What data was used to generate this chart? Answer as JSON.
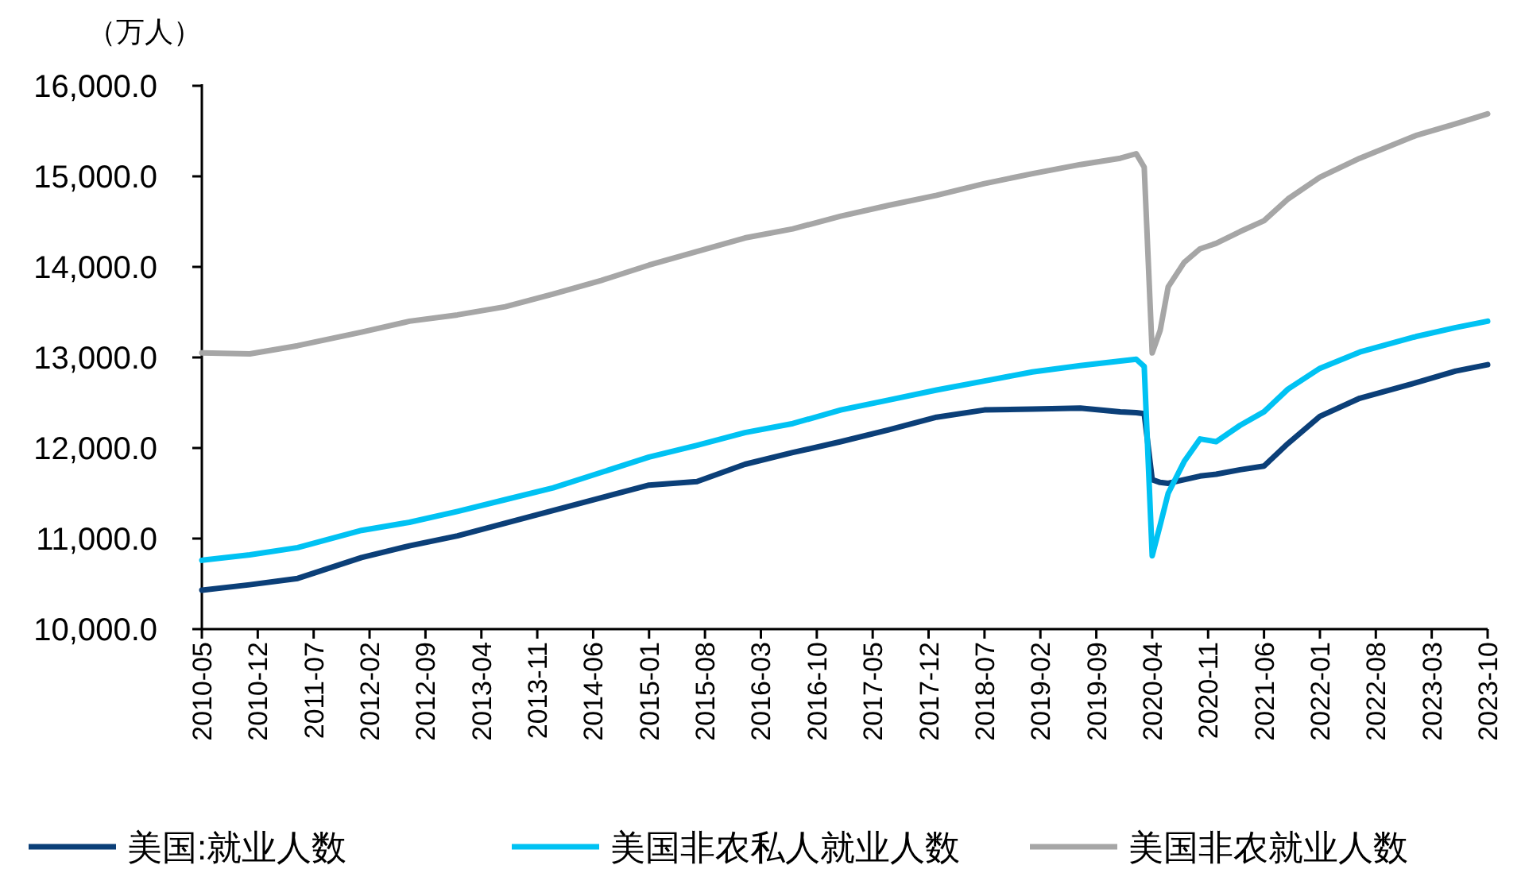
{
  "chart_data": {
    "type": "line",
    "ylabel": "（万人）",
    "x": [
      "2010-05",
      "2010-11",
      "2011-05",
      "2012-01",
      "2012-07",
      "2013-01",
      "2013-07",
      "2014-01",
      "2014-07",
      "2015-01",
      "2015-07",
      "2016-01",
      "2016-07",
      "2017-01",
      "2017-07",
      "2018-01",
      "2018-07",
      "2019-01",
      "2019-07",
      "2019-12",
      "2020-02",
      "2020-03",
      "2020-04",
      "2020-05",
      "2020-06",
      "2020-08",
      "2020-10",
      "2020-12",
      "2021-03",
      "2021-06",
      "2021-09",
      "2022-01",
      "2022-06",
      "2023-01",
      "2023-06",
      "2023-10"
    ],
    "series": [
      {
        "name": "美国:就业人数",
        "color": "#0b3f78",
        "values": [
          10430,
          10490,
          10560,
          10790,
          10920,
          11030,
          11170,
          11310,
          11450,
          11590,
          11630,
          11820,
          11950,
          12070,
          12200,
          12340,
          12420,
          12430,
          12440,
          12400,
          12390,
          12380,
          11650,
          11620,
          11610,
          11650,
          11690,
          11710,
          11760,
          11800,
          12050,
          12350,
          12550,
          12720,
          12850,
          12920
        ]
      },
      {
        "name": "美国非农私人就业人数",
        "color": "#00c2f3",
        "values": [
          10760,
          10820,
          10900,
          11090,
          11180,
          11300,
          11430,
          11560,
          11730,
          11900,
          12030,
          12170,
          12270,
          12420,
          12530,
          12640,
          12740,
          12840,
          12910,
          12960,
          12980,
          12900,
          10810,
          11150,
          11500,
          11850,
          12100,
          12070,
          12250,
          12400,
          12650,
          12880,
          13060,
          13230,
          13330,
          13400
        ]
      },
      {
        "name": "美国非农就业人数",
        "color": "#a6a6a6",
        "values": [
          13050,
          13040,
          13130,
          13280,
          13400,
          13470,
          13560,
          13700,
          13850,
          14020,
          14170,
          14320,
          14420,
          14560,
          14680,
          14790,
          14920,
          15030,
          15130,
          15200,
          15250,
          15100,
          13050,
          13300,
          13780,
          14050,
          14200,
          14260,
          14390,
          14510,
          14750,
          14990,
          15200,
          15450,
          15580,
          15690
        ]
      }
    ],
    "xlim": [
      "2010-05",
      "2023-10"
    ],
    "xticks": [
      "2010-05",
      "2010-12",
      "2011-07",
      "2012-02",
      "2012-09",
      "2013-04",
      "2013-11",
      "2014-06",
      "2015-01",
      "2015-08",
      "2016-03",
      "2016-10",
      "2017-05",
      "2017-12",
      "2018-07",
      "2019-02",
      "2019-09",
      "2020-04",
      "2020-11",
      "2021-06",
      "2022-01",
      "2022-08",
      "2023-03",
      "2023-10"
    ],
    "ylim": [
      10000,
      16000
    ],
    "yticks": [
      {
        "value": 10000,
        "label": "10,000.0"
      },
      {
        "value": 11000,
        "label": "11,000.0"
      },
      {
        "value": 12000,
        "label": "12,000.0"
      },
      {
        "value": 13000,
        "label": "13,000.0"
      },
      {
        "value": 14000,
        "label": "14,000.0"
      },
      {
        "value": 15000,
        "label": "15,000.0"
      },
      {
        "value": 16000,
        "label": "16,000.0"
      }
    ],
    "grid": false,
    "legend": "bottom",
    "marker": "none",
    "line_style": "solid"
  }
}
